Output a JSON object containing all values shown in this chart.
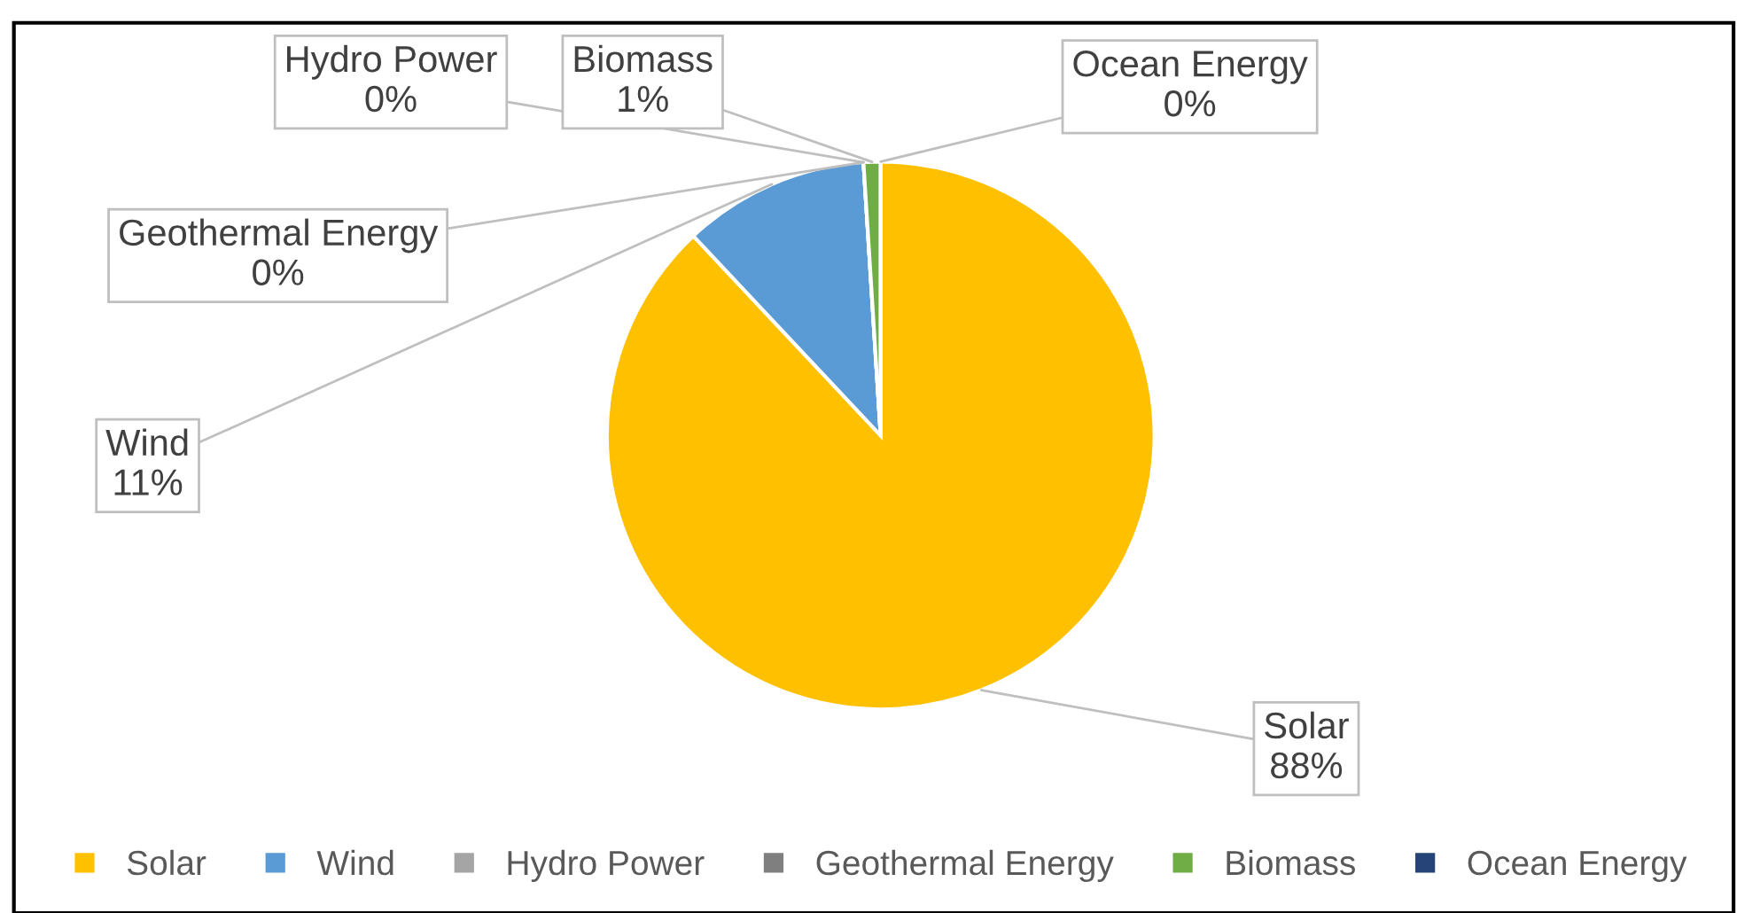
{
  "chart_data": {
    "type": "pie",
    "categories": [
      "Solar",
      "Wind",
      "Hydro Power",
      "Geothermal Energy",
      "Biomass",
      "Ocean Energy"
    ],
    "values": [
      88,
      11,
      0,
      0,
      1,
      0
    ],
    "value_labels": [
      "88%",
      "11%",
      "0%",
      "0%",
      "1%",
      "0%"
    ],
    "colors": [
      "#ffc000",
      "#5b9bd5",
      "#a5a5a5",
      "#7f7f7f",
      "#70ad47",
      "#264478"
    ],
    "legend": "bottom"
  }
}
